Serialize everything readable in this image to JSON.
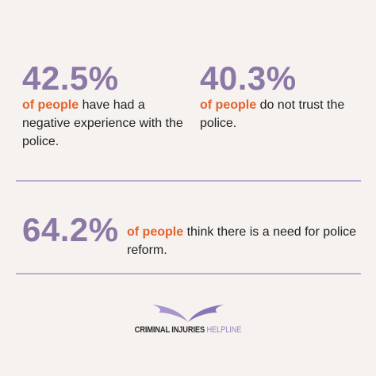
{
  "stats": [
    {
      "number": "42.5%",
      "highlight": "of people",
      "text": "have had a negative experience with the police."
    },
    {
      "number": "40.3%",
      "highlight": "of people",
      "text": "do not trust the police."
    },
    {
      "number": "64.2%",
      "highlight": "of people",
      "text": "think there is a need for police reform."
    }
  ],
  "logo": {
    "name": "CRIMINAL INJURIES",
    "suffix": "HELPLINE"
  }
}
